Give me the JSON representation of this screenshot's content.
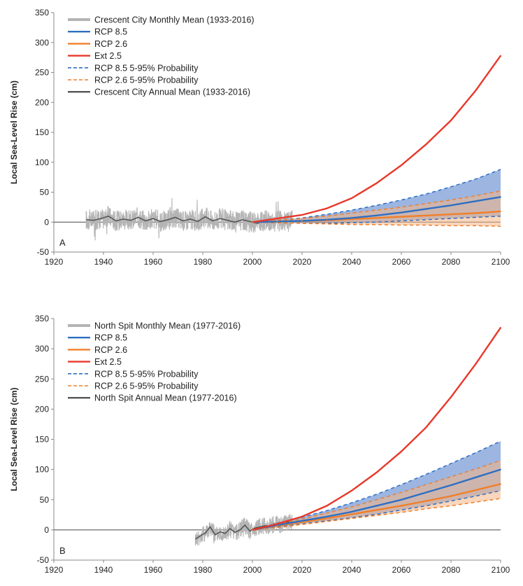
{
  "chart_data": [
    {
      "type": "line",
      "panel_label": "A",
      "ylabel": "Local Sea-Level Rise (cm)",
      "xlim": [
        1920,
        2100
      ],
      "ylim": [
        -50,
        350
      ],
      "x_ticks": [
        1920,
        1940,
        1960,
        1980,
        2000,
        2020,
        2040,
        2060,
        2080,
        2100
      ],
      "y_ticks": [
        -50,
        0,
        50,
        100,
        150,
        200,
        250,
        300,
        350
      ],
      "grid": false,
      "legend_position": "top-left",
      "legend": [
        {
          "label": "Crescent City Monthly Mean (1933-2016)",
          "style": "thick-solid",
          "color": "#b4b4b4"
        },
        {
          "label": "RCP 8.5",
          "style": "solid",
          "color": "#2e6fc2"
        },
        {
          "label": "RCP 2.6",
          "style": "solid",
          "color": "#f07f2a"
        },
        {
          "label": "Ext 2.5",
          "style": "solid",
          "color": "#e8382a"
        },
        {
          "label": "RCP 8.5 5-95% Probability",
          "style": "dashed",
          "color": "#2e6fc2"
        },
        {
          "label": "RCP 2.6 5-95% Probability",
          "style": "dashed",
          "color": "#f07f2a"
        },
        {
          "label": "Crescent City Annual Mean (1933-2016)",
          "style": "solid",
          "color": "#555555"
        }
      ],
      "projection_x": [
        2000,
        2010,
        2020,
        2030,
        2040,
        2050,
        2060,
        2070,
        2080,
        2090,
        2100
      ],
      "series": [
        {
          "name": "Ext 2.5",
          "x": [
            2000,
            2010,
            2020,
            2030,
            2040,
            2050,
            2060,
            2070,
            2080,
            2090,
            2100
          ],
          "values": [
            0,
            6,
            12,
            23,
            40,
            65,
            95,
            130,
            170,
            220,
            278
          ]
        },
        {
          "name": "RCP 8.5",
          "x": [
            2000,
            2010,
            2020,
            2030,
            2040,
            2050,
            2060,
            2070,
            2080,
            2090,
            2100
          ],
          "values": [
            0,
            1,
            2,
            4,
            7,
            11,
            16,
            22,
            28,
            35,
            42
          ]
        },
        {
          "name": "RCP 2.6",
          "x": [
            2000,
            2010,
            2020,
            2030,
            2040,
            2050,
            2060,
            2070,
            2080,
            2090,
            2100
          ],
          "values": [
            0,
            1,
            2,
            3,
            5,
            7,
            9,
            11,
            13,
            15,
            18
          ]
        },
        {
          "name": "RCP 8.5 5-95% Probability",
          "x": [
            2000,
            2010,
            2020,
            2030,
            2040,
            2050,
            2060,
            2070,
            2080,
            2090,
            2100
          ],
          "lower": [
            0,
            -1,
            -2,
            -2,
            -1,
            0,
            2,
            4,
            6,
            8,
            10
          ],
          "upper": [
            0,
            3,
            7,
            13,
            20,
            28,
            37,
            47,
            59,
            72,
            88
          ]
        },
        {
          "name": "RCP 2.6 5-95% Probability",
          "x": [
            2000,
            2010,
            2020,
            2030,
            2040,
            2050,
            2060,
            2070,
            2080,
            2090,
            2100
          ],
          "lower": [
            0,
            -1,
            -2,
            -3,
            -4,
            -4,
            -5,
            -5,
            -6,
            -6,
            -7
          ],
          "upper": [
            0,
            3,
            6,
            10,
            15,
            20,
            25,
            31,
            37,
            44,
            52
          ]
        },
        {
          "name": "Crescent City Annual Mean (1933-2016)",
          "x": [
            1933,
            1936,
            1939,
            1942,
            1945,
            1948,
            1951,
            1954,
            1957,
            1960,
            1963,
            1966,
            1969,
            1972,
            1975,
            1978,
            1981,
            1984,
            1987,
            1990,
            1993,
            1996,
            1999,
            2002,
            2005,
            2008,
            2011,
            2014,
            2016
          ],
          "values": [
            4,
            3,
            6,
            10,
            2,
            5,
            3,
            8,
            2,
            6,
            1,
            4,
            8,
            2,
            5,
            1,
            9,
            2,
            6,
            3,
            0,
            4,
            1,
            -2,
            3,
            -1,
            2,
            1,
            3
          ]
        }
      ],
      "monthly_band": {
        "x_range": [
          1933,
          2016
        ],
        "amplitude": 22
      }
    },
    {
      "type": "line",
      "panel_label": "B",
      "ylabel": "Local Sea-Level Rise (cm)",
      "xlim": [
        1920,
        2100
      ],
      "ylim": [
        -50,
        350
      ],
      "x_ticks": [
        1920,
        1940,
        1960,
        1980,
        2000,
        2020,
        2040,
        2060,
        2080,
        2100
      ],
      "y_ticks": [
        -50,
        0,
        50,
        100,
        150,
        200,
        250,
        300,
        350
      ],
      "grid": false,
      "legend_position": "top-left",
      "legend": [
        {
          "label": "North Spit Monthly Mean (1977-2016)",
          "style": "thick-solid",
          "color": "#b4b4b4"
        },
        {
          "label": "RCP 8.5",
          "style": "solid",
          "color": "#2e6fc2"
        },
        {
          "label": "RCP 2.6",
          "style": "solid",
          "color": "#f07f2a"
        },
        {
          "label": "Ext 2.5",
          "style": "solid",
          "color": "#e8382a"
        },
        {
          "label": "RCP 8.5 5-95% Probability",
          "style": "dashed",
          "color": "#2e6fc2"
        },
        {
          "label": "RCP 2.6 5-95% Probability",
          "style": "dashed",
          "color": "#f07f2a"
        },
        {
          "label": "North Spit Annual Mean (1977-2016)",
          "style": "solid",
          "color": "#555555"
        }
      ],
      "series": [
        {
          "name": "Ext 2.5",
          "x": [
            2000,
            2010,
            2020,
            2030,
            2040,
            2050,
            2060,
            2070,
            2080,
            2090,
            2100
          ],
          "values": [
            0,
            10,
            22,
            40,
            65,
            95,
            130,
            170,
            220,
            275,
            335
          ]
        },
        {
          "name": "RCP 8.5",
          "x": [
            2000,
            2010,
            2020,
            2030,
            2040,
            2050,
            2060,
            2070,
            2080,
            2090,
            2100
          ],
          "values": [
            0,
            8,
            15,
            22,
            30,
            40,
            50,
            62,
            74,
            87,
            100
          ]
        },
        {
          "name": "RCP 2.6",
          "x": [
            2000,
            2010,
            2020,
            2030,
            2040,
            2050,
            2060,
            2070,
            2080,
            2090,
            2100
          ],
          "values": [
            0,
            7,
            13,
            19,
            26,
            33,
            40,
            48,
            56,
            66,
            76
          ]
        },
        {
          "name": "RCP 8.5 5-95% Probability",
          "x": [
            2000,
            2010,
            2020,
            2030,
            2040,
            2050,
            2060,
            2070,
            2080,
            2090,
            2100
          ],
          "lower": [
            0,
            5,
            10,
            15,
            20,
            26,
            33,
            40,
            48,
            56,
            65
          ],
          "upper": [
            0,
            11,
            21,
            32,
            45,
            59,
            75,
            92,
            110,
            128,
            147
          ]
        },
        {
          "name": "RCP 2.6 5-95% Probability",
          "x": [
            2000,
            2010,
            2020,
            2030,
            2040,
            2050,
            2060,
            2070,
            2080,
            2090,
            2100
          ],
          "lower": [
            0,
            4,
            9,
            14,
            19,
            24,
            29,
            35,
            40,
            46,
            52
          ],
          "upper": [
            0,
            9,
            18,
            28,
            38,
            50,
            62,
            75,
            88,
            101,
            115
          ]
        },
        {
          "name": "North Spit Annual Mean (1977-2016)",
          "x": [
            1977,
            1979,
            1981,
            1983,
            1985,
            1987,
            1989,
            1991,
            1993,
            1995,
            1997,
            1999,
            2001,
            2003,
            2005,
            2007,
            2009,
            2011,
            2013,
            2015,
            2016
          ],
          "values": [
            -15,
            -10,
            -5,
            5,
            -8,
            -3,
            -6,
            2,
            -4,
            0,
            8,
            -2,
            3,
            5,
            7,
            6,
            10,
            8,
            12,
            13,
            14
          ]
        }
      ],
      "monthly_band": {
        "x_range": [
          1977,
          2016
        ],
        "amplitude": 18
      }
    }
  ]
}
